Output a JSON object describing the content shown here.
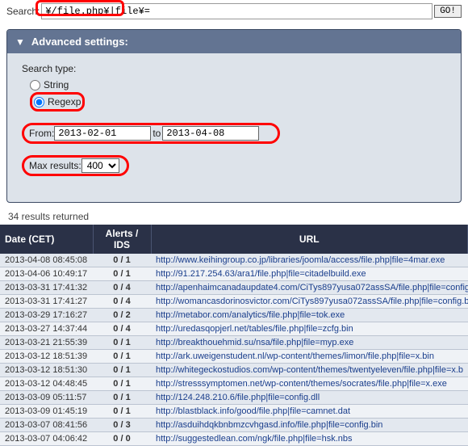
{
  "search": {
    "label": "Search:",
    "value": "¥/file.php¥|file¥=",
    "go": "GO!"
  },
  "advanced": {
    "title": "Advanced settings:",
    "search_type_label": "Search type:",
    "opt_string": "String",
    "opt_regexp": "Regexp",
    "from_label": "From:",
    "from_value": "2013-02-01",
    "to_label": "to",
    "to_value": "2013-04-08",
    "max_label": "Max results:",
    "max_value": "400"
  },
  "results": {
    "count_text": "34 results returned"
  },
  "table": {
    "headers": {
      "date": "Date (CET)",
      "alerts": "Alerts / IDS",
      "url": "URL"
    },
    "rows": [
      {
        "date": "2013-04-08 08:45:08",
        "alerts": "0 / 1",
        "url": "http://www.keihingroup.co.jp/libraries/joomla/access/file.php|file=4mar.exe"
      },
      {
        "date": "2013-04-06 10:49:17",
        "alerts": "0 / 1",
        "url": "http://91.217.254.63/ara1/file.php|file=citadelbuild.exe"
      },
      {
        "date": "2013-03-31 17:41:32",
        "alerts": "0 / 4",
        "url": "http://apenhaimcanadaupdate4.com/CiTys897yusa072assSA/file.php|file=confige"
      },
      {
        "date": "2013-03-31 17:41:27",
        "alerts": "0 / 4",
        "url": "http://womancasdorinosvictor.com/CiTys897yusa072assSA/file.php|file=config.b"
      },
      {
        "date": "2013-03-29 17:16:27",
        "alerts": "0 / 2",
        "url": "http://metabor.com/analytics/file.php|file=tok.exe"
      },
      {
        "date": "2013-03-27 14:37:44",
        "alerts": "0 / 4",
        "url": "http://uredasqopjerl.net/tables/file.php|file=zcfg.bin"
      },
      {
        "date": "2013-03-21 21:55:39",
        "alerts": "0 / 1",
        "url": "http://breakthouehmid.su/nsa/file.php|file=myp.exe"
      },
      {
        "date": "2013-03-12 18:51:39",
        "alerts": "0 / 1",
        "url": "http://ark.uweigenstudent.nl/wp-content/themes/limon/file.php|file=x.bin"
      },
      {
        "date": "2013-03-12 18:51:30",
        "alerts": "0 / 1",
        "url": "http://whitegeckostudios.com/wp-content/themes/twentyeleven/file.php|file=x.b"
      },
      {
        "date": "2013-03-12 04:48:45",
        "alerts": "0 / 1",
        "url": "http://stresssymptomen.net/wp-content/themes/socrates/file.php|file=x.exe"
      },
      {
        "date": "2013-03-09 05:11:57",
        "alerts": "0 / 1",
        "url": "http://124.248.210.6/file.php|file=config.dll"
      },
      {
        "date": "2013-03-09 01:45:19",
        "alerts": "0 / 1",
        "url": "http://blastblack.info/good/file.php|file=camnet.dat"
      },
      {
        "date": "2013-03-07 08:41:56",
        "alerts": "0 / 3",
        "url": "http://asduihdqkbnbmzcvhgasd.info/file.php|file=config.bin"
      },
      {
        "date": "2013-03-07 04:06:42",
        "alerts": "0 / 0",
        "url": "http://suggestedlean.com/ngk/file.php|file=hsk.nbs"
      }
    ]
  },
  "colors": {
    "panel_bg": "#dde3ea",
    "header_bg": "#637492",
    "th_bg": "#2a3147",
    "row_bg": "#e3e8ef",
    "row_alt": "#eff2f6",
    "border": "#bcc4d1",
    "highlight": "#f00",
    "link": "#1a3e8c"
  }
}
